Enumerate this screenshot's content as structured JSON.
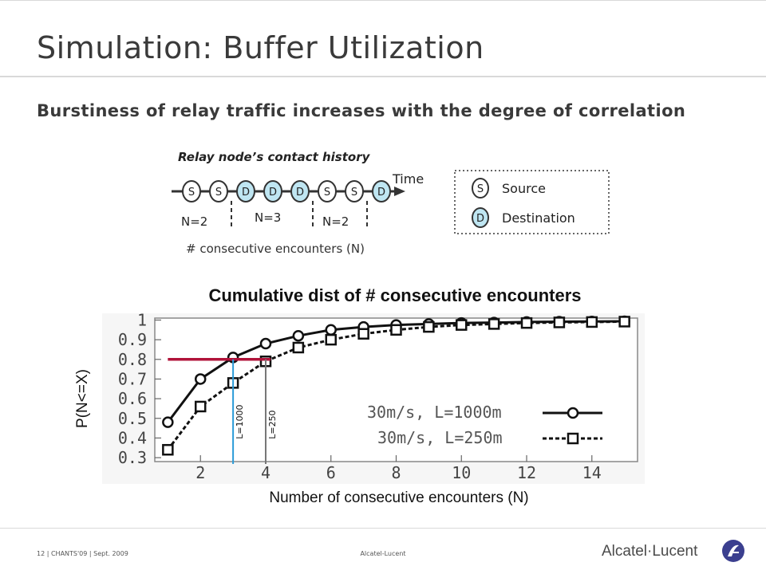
{
  "slide": {
    "title": "Simulation: Buffer Utilization",
    "subtitle": "Burstiness of relay traffic increases with the degree of correlation"
  },
  "diagram": {
    "heading": "Relay node’s contact history",
    "time_label": "Time",
    "sequence": [
      "S",
      "S",
      "D",
      "D",
      "D",
      "S",
      "S",
      "D"
    ],
    "group_labels": [
      "N=2",
      "N=3",
      "N=2"
    ],
    "axis_caption": "# consecutive encounters (N)",
    "legend": [
      {
        "symbol": "S",
        "label": "Source"
      },
      {
        "symbol": "D",
        "label": "Destination"
      }
    ],
    "colors": {
      "source": "#ffffff",
      "destination": "#bfe6f2",
      "line": "#333333"
    }
  },
  "chart_data": {
    "type": "line",
    "title": "Cumulative dist of # consecutive encounters",
    "xlabel": "Number of consecutive encounters (N)",
    "ylabel": "P(N<=X)",
    "x": [
      1,
      2,
      3,
      4,
      5,
      6,
      7,
      8,
      9,
      10,
      11,
      12,
      13,
      14,
      15
    ],
    "xticks": [
      "2",
      "4",
      "6",
      "8",
      "10",
      "12",
      "14"
    ],
    "yticks": [
      "1",
      "0.9",
      "0.8",
      "0.7",
      "0.6",
      "0.5",
      "0.4",
      "0.3"
    ],
    "xlim": [
      0.6,
      15.4
    ],
    "ylim": [
      0.28,
      1.01
    ],
    "series": [
      {
        "name": "30m/s, L=1000m",
        "marker": "circle",
        "line": "solid",
        "values": [
          0.48,
          0.7,
          0.81,
          0.88,
          0.92,
          0.95,
          0.965,
          0.975,
          0.98,
          0.985,
          0.987,
          0.99,
          0.992,
          0.993,
          0.994
        ]
      },
      {
        "name": "30m/s, L=250m",
        "marker": "square",
        "line": "dashed",
        "values": [
          0.34,
          0.56,
          0.68,
          0.79,
          0.86,
          0.9,
          0.93,
          0.95,
          0.965,
          0.975,
          0.98,
          0.985,
          0.988,
          0.99,
          0.992
        ]
      }
    ],
    "annotations": {
      "threshold_y": 0.8,
      "threshold_x_range": [
        1,
        4.15
      ],
      "threshold_color": "#b0133a",
      "markers": [
        {
          "label": "L=1000",
          "x": 3,
          "color": "#2b9bd8"
        },
        {
          "label": "L=250",
          "x": 4,
          "color": "#777777"
        }
      ]
    },
    "grid": false,
    "legend_position": "bottom-right"
  },
  "footer": {
    "left": "12 | CHANTS'09 | Sept. 2009",
    "center": "Alcatel-Lucent",
    "logo": "Alcatel·Lucent"
  }
}
